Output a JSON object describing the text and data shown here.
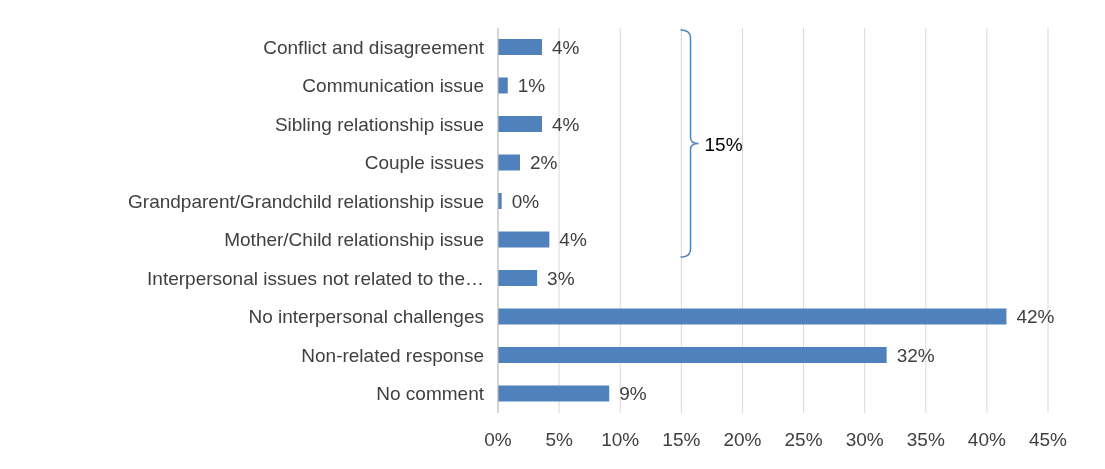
{
  "chart_data": {
    "type": "bar",
    "orientation": "horizontal",
    "categories": [
      "Conflict and disagreement",
      "Communication issue",
      "Sibling relationship issue",
      "Couple issues",
      "Grandparent/Grandchild relationship issue",
      "Mother/Child relationship issue",
      "Interpersonal issues not related to the…",
      "No interpersonal challenges",
      "Non-related response",
      "No comment"
    ],
    "values": [
      3.6,
      0.8,
      3.6,
      1.8,
      0.3,
      4.2,
      3.2,
      41.6,
      31.8,
      9.1
    ],
    "value_labels": [
      "4%",
      "1%",
      "4%",
      "2%",
      "0%",
      "4%",
      "3%",
      "42%",
      "32%",
      "9%"
    ],
    "color": "#4f81bd",
    "xlim": [
      0,
      45
    ],
    "xticks": [
      {
        "value": 0,
        "label": "0%"
      },
      {
        "value": 5,
        "label": "5%"
      },
      {
        "value": 10,
        "label": "10%"
      },
      {
        "value": 15,
        "label": "15%"
      },
      {
        "value": 20,
        "label": "20%"
      },
      {
        "value": 25,
        "label": "25%"
      },
      {
        "value": 30,
        "label": "30%"
      },
      {
        "value": 35,
        "label": "35%"
      },
      {
        "value": 40,
        "label": "40%"
      },
      {
        "value": 45,
        "label": "45%"
      }
    ],
    "grid": "x",
    "legend": false,
    "annotations": [
      "15%"
    ]
  }
}
